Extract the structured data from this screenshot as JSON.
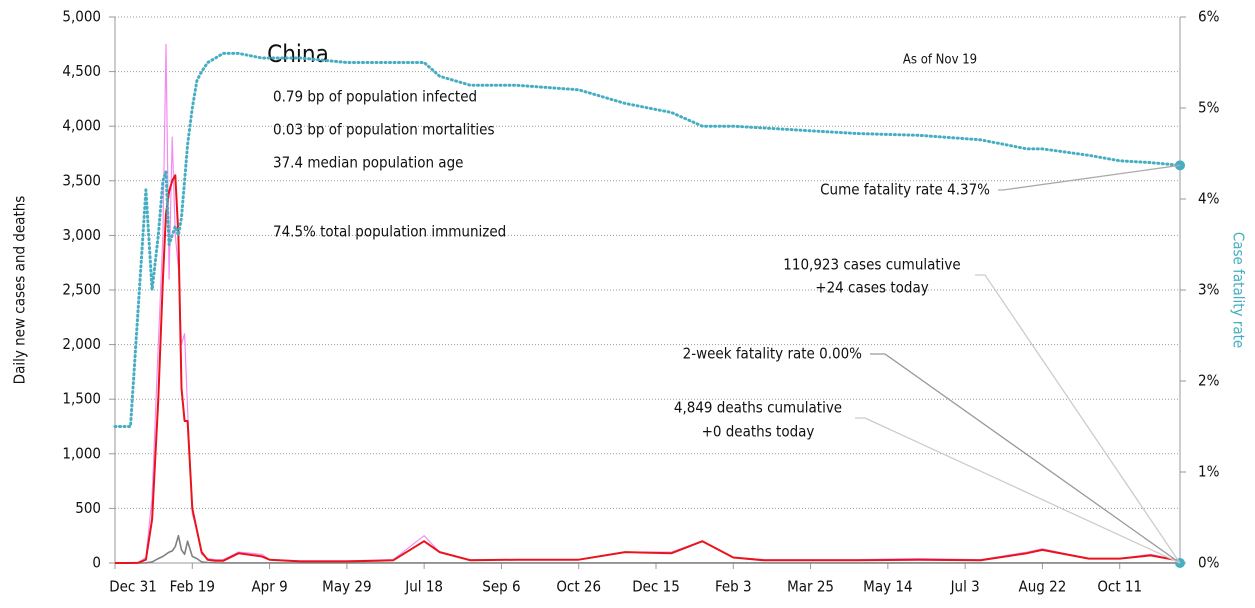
{
  "chart_data": {
    "type": "line",
    "title": "China",
    "notes": [
      "0.79 bp of population infected",
      "0.03 bp of population mortalities",
      "37.4 median population age",
      "74.5% total population immunized"
    ],
    "as_of": "As of Nov 19",
    "annotations": [
      "Cume fatality rate 4.37%",
      "110,923 cases cumulative",
      "+24 cases today",
      "2-week fatality rate 0.00%",
      "4,849 deaths cumulative",
      "+0 deaths today"
    ],
    "y_label": "Daily new cases and deaths",
    "y2_label": "Case fatality rate",
    "xlim": [
      0,
      689
    ],
    "xticks": [
      {
        "value": 0,
        "label": "Dec 31"
      },
      {
        "value": 50,
        "label": "Feb 19"
      },
      {
        "value": 100,
        "label": "Apr 9"
      },
      {
        "value": 150,
        "label": "May 29"
      },
      {
        "value": 200,
        "label": "Jul 18"
      },
      {
        "value": 250,
        "label": "Sep 6"
      },
      {
        "value": 300,
        "label": "Oct 26"
      },
      {
        "value": 350,
        "label": "Dec 15"
      },
      {
        "value": 400,
        "label": "Feb 3"
      },
      {
        "value": 450,
        "label": "Mar 25"
      },
      {
        "value": 500,
        "label": "May 14"
      },
      {
        "value": 550,
        "label": "Jul 3"
      },
      {
        "value": 600,
        "label": "Aug 22"
      },
      {
        "value": 650,
        "label": "Oct 11"
      }
    ],
    "ylim": [
      0,
      5000
    ],
    "yticks": [
      0,
      {
        "value": 500,
        "label": "500"
      },
      {
        "value": 1000,
        "label": "1,000"
      },
      {
        "value": 1500,
        "label": "1,500"
      },
      {
        "value": 2000,
        "label": "2,000"
      },
      {
        "value": 2500,
        "label": "2,500"
      },
      {
        "value": 3000,
        "label": "3,000"
      },
      {
        "value": 3500,
        "label": "3,500"
      },
      {
        "value": 4000,
        "label": "4,000"
      },
      {
        "value": 4500,
        "label": "4,500"
      },
      {
        "value": 5000,
        "label": "5,000"
      }
    ],
    "y2lim": [
      0,
      6
    ],
    "y2ticks": [
      {
        "value": 0,
        "label": "0%"
      },
      {
        "value": 1,
        "label": "1%"
      },
      {
        "value": 2,
        "label": "2%"
      },
      {
        "value": 3,
        "label": "3%"
      },
      {
        "value": 4,
        "label": "4%"
      },
      {
        "value": 5,
        "label": "5%"
      },
      {
        "value": 6,
        "label": "6%"
      }
    ],
    "grid": true,
    "x": [
      0,
      10,
      15,
      20,
      24,
      28,
      31,
      33,
      35,
      37,
      39,
      41,
      43,
      45,
      47,
      50,
      53,
      56,
      60,
      65,
      70,
      80,
      95,
      100,
      120,
      150,
      180,
      200,
      210,
      230,
      260,
      300,
      330,
      360,
      380,
      400,
      420,
      450,
      480,
      520,
      560,
      590,
      600,
      630,
      650,
      670,
      689
    ],
    "series": [
      {
        "color": "#f48cf0",
        "width": 1.2,
        "values": [
          0,
          0,
          5,
          50,
          600,
          2000,
          3000,
          4750,
          2600,
          3900,
          3000,
          2700,
          2000,
          2100,
          1400,
          450,
          300,
          80,
          40,
          30,
          30,
          100,
          80,
          30,
          20,
          20,
          30,
          250,
          100,
          30,
          30,
          30,
          100,
          100,
          200,
          50,
          30,
          30,
          30,
          40,
          30,
          100,
          130,
          40,
          40,
          80,
          20
        ]
      },
      {
        "color": "#808080",
        "width": 1.6,
        "values": [
          0,
          0,
          0,
          1,
          10,
          40,
          60,
          80,
          100,
          110,
          150,
          250,
          120,
          80,
          200,
          60,
          40,
          10,
          5,
          2,
          1,
          1,
          1,
          1,
          1,
          1,
          1,
          1,
          1,
          1,
          1,
          1,
          1,
          1,
          1,
          1,
          1,
          1,
          1,
          1,
          1,
          1,
          1,
          1,
          1,
          1,
          0
        ]
      },
      {
        "color": "#e8141c",
        "width": 2,
        "values": [
          0,
          0,
          2,
          30,
          400,
          1500,
          2600,
          3200,
          3400,
          3500,
          3550,
          3000,
          1600,
          1300,
          1300,
          500,
          300,
          100,
          30,
          20,
          20,
          90,
          60,
          30,
          15,
          15,
          25,
          200,
          100,
          25,
          30,
          30,
          100,
          90,
          200,
          50,
          25,
          25,
          25,
          30,
          25,
          90,
          120,
          40,
          40,
          70,
          20
        ]
      },
      {
        "color": "#46aec2",
        "width": 3,
        "dotted": true,
        "axis": "y2",
        "values": [
          1.5,
          1.5,
          2.8,
          4.1,
          3.0,
          3.6,
          4.2,
          4.3,
          3.5,
          3.6,
          3.7,
          3.6,
          3.8,
          4.2,
          4.6,
          5.0,
          5.3,
          5.4,
          5.5,
          5.55,
          5.6,
          5.6,
          5.55,
          5.55,
          5.55,
          5.5,
          5.5,
          5.5,
          5.35,
          5.25,
          5.25,
          5.2,
          5.05,
          4.95,
          4.8,
          4.8,
          4.78,
          4.75,
          4.72,
          4.7,
          4.65,
          4.55,
          4.55,
          4.48,
          4.42,
          4.4,
          4.37
        ]
      }
    ]
  }
}
